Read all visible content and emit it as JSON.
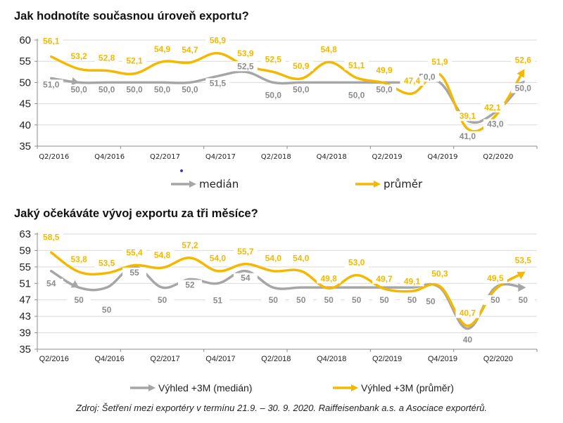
{
  "colors": {
    "median": "#a6a6a6",
    "median_label": "#8c8c8c",
    "mean": "#f5b800",
    "grid": "#d9d9d9",
    "axis": "#8c8c8c"
  },
  "chart_data": [
    {
      "type": "line",
      "title": "Jak hodnotíte současnou úroveň exportu?",
      "xlabel": "",
      "ylabel": "",
      "ylim": [
        35,
        60
      ],
      "yticks": [
        35,
        40,
        45,
        50,
        55,
        60
      ],
      "grid": true,
      "categories": [
        "Q2/2016",
        "Q3/2016",
        "Q4/2016",
        "Q1/2017",
        "Q2/2017",
        "Q3/2017",
        "Q4/2017",
        "Q1/2018",
        "Q2/2018",
        "Q3/2018",
        "Q4/2018",
        "Q1/2019",
        "Q2/2019",
        "Q3/2019",
        "Q4/2019",
        "Q1/2020",
        "Q2/2020",
        "Q3/2020"
      ],
      "xtick_labels": [
        "Q2/2016",
        "",
        "Q4/2016",
        "",
        "Q2/2017",
        "",
        "Q4/2017",
        "",
        "Q2/2018",
        "",
        "Q4/2018",
        "",
        "Q2/2019",
        "",
        "Q4/2019",
        "",
        "Q2/2020",
        ""
      ],
      "series": [
        {
          "name": "medián",
          "key": "median",
          "values": [
            51.0,
            50.0,
            50.0,
            50.0,
            50.0,
            50.0,
            51.5,
            52.5,
            50.0,
            50.0,
            50.0,
            50.0,
            50.0,
            50.0,
            50.0,
            41.0,
            43.0,
            50.0
          ],
          "labels": [
            "51,0",
            "50,0",
            "50,0",
            "50,0",
            "50,0",
            "50,0",
            "51,5",
            "52,5",
            "50,0",
            "50,0",
            "",
            "50,0",
            "50,0",
            "",
            "50,0",
            "41,0",
            "43,0",
            "50,0"
          ]
        },
        {
          "name": "průměr",
          "key": "mean",
          "values": [
            56.1,
            53.2,
            52.8,
            52.1,
            54.9,
            54.7,
            56.9,
            53.9,
            52.5,
            50.9,
            54.8,
            51.1,
            49.9,
            47.4,
            51.9,
            39.1,
            42.1,
            52.6
          ],
          "labels": [
            "56,1",
            "53,2",
            "52,8",
            "52,1",
            "54,9",
            "54,7",
            "56,9",
            "53,9",
            "52,5",
            "50,9",
            "54,8",
            "51,1",
            "49,9",
            "47,4",
            "51,9",
            "39,1",
            "42,1",
            "52,6"
          ]
        }
      ],
      "legend": {
        "placement": "bottom",
        "items": [
          "medián",
          "průměr"
        ]
      }
    },
    {
      "type": "line",
      "title": "Jaký očekáváte vývoj exportu za tři měsíce?",
      "xlabel": "",
      "ylabel": "",
      "ylim": [
        35,
        63
      ],
      "yticks": [
        35,
        39,
        43,
        47,
        51,
        55,
        59,
        63
      ],
      "grid": true,
      "categories": [
        "Q2/2016",
        "Q3/2016",
        "Q4/2016",
        "Q1/2017",
        "Q2/2017",
        "Q3/2017",
        "Q4/2017",
        "Q1/2018",
        "Q2/2018",
        "Q3/2018",
        "Q4/2018",
        "Q1/2019",
        "Q2/2019",
        "Q3/2019",
        "Q4/2019",
        "Q1/2020",
        "Q2/2020",
        "Q3/2020"
      ],
      "xtick_labels": [
        "Q2/2016",
        "",
        "Q4/2016",
        "",
        "Q2/2017",
        "",
        "Q4/2017",
        "",
        "Q2/2018",
        "",
        "Q4/2018",
        "",
        "Q2/2019",
        "",
        "Q4/2019",
        "",
        "Q2/2020",
        ""
      ],
      "series": [
        {
          "name": "Výhled +3M (medián)",
          "key": "median",
          "values": [
            54,
            50,
            50,
            55,
            50,
            52,
            51,
            54,
            50,
            50,
            50,
            50,
            50,
            50,
            50,
            40,
            50,
            50
          ],
          "labels": [
            "54",
            "50",
            "50",
            "55",
            "50",
            "52",
            "51",
            "54",
            "50",
            "50",
            "50",
            "50",
            "50",
            "50",
            "50",
            "40",
            "50",
            "50"
          ]
        },
        {
          "name": "Výhled +3M (průměr)",
          "key": "mean",
          "values": [
            58.5,
            53.8,
            53.5,
            55.4,
            54.8,
            57.2,
            54.0,
            55.7,
            54.0,
            54.0,
            49.8,
            53.0,
            49.7,
            49.1,
            50.3,
            40.7,
            49.5,
            53.5
          ],
          "labels": [
            "58,5",
            "53,8",
            "53,5",
            "55,4",
            "54,8",
            "57,2",
            "54,0",
            "55,7",
            "54,0",
            "54,0",
            "49,8",
            "53,0",
            "49,7",
            "49,1",
            "50,3",
            "40,7",
            "49,5",
            "53,5"
          ]
        }
      ],
      "legend": {
        "placement": "bottom",
        "items": [
          "Výhled +3M (medián)",
          "Výhled +3M (průměr)"
        ]
      }
    }
  ],
  "source_note": "Zdroj: Šetření mezi exportéry v termínu 21.9. – 30. 9. 2020. Raiffeisenbank a.s. a Asociace exportérů."
}
